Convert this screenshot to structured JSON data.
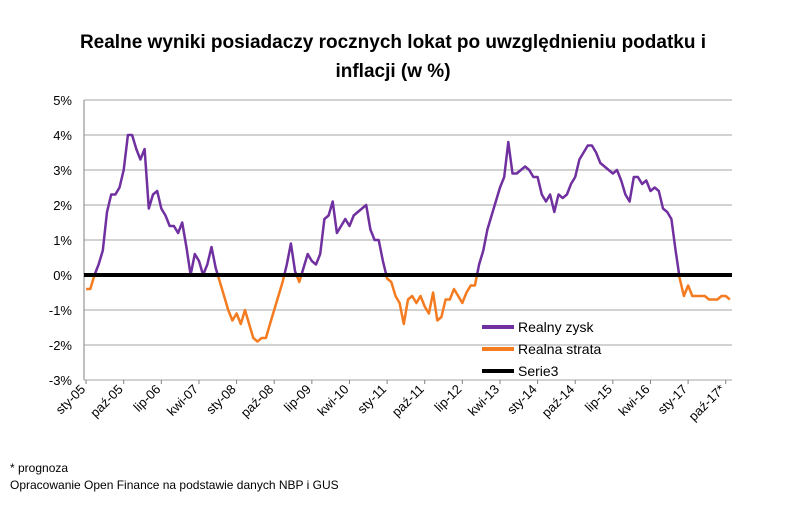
{
  "title": {
    "line1": "Realne wyniki posiadaczy rocznych lokat po uwzględnieniu podatku i",
    "line2": "inflacji (w %)"
  },
  "footnotes": {
    "note": "* prognoza",
    "source": "Opracowanie Open Finance na podstawie danych NBP i GUS"
  },
  "colors": {
    "gain": "#7030a0",
    "loss": "#f47b20",
    "serie3": "#000000",
    "grid": "#a6a6a6"
  },
  "chart_data": {
    "type": "line",
    "title": "Realne wyniki posiadaczy rocznych lokat po uwzględnieniu podatku i inflacji (w %)",
    "xlabel": "",
    "ylabel": "",
    "ylim": [
      -3,
      5
    ],
    "y_ticks": [
      "-3%",
      "-2%",
      "-1%",
      "0%",
      "1%",
      "2%",
      "3%",
      "4%",
      "5%"
    ],
    "x_tick_labels": [
      "sty-05",
      "paź-05",
      "lip-06",
      "kwi-07",
      "sty-08",
      "paź-08",
      "lip-09",
      "kwi-10",
      "sty-11",
      "paź-11",
      "lip-12",
      "kwi-13",
      "sty-14",
      "paź-14",
      "lip-15",
      "kwi-16",
      "sty-17",
      "paź-17*"
    ],
    "grid": true,
    "legend_position": "bottom-right",
    "series_names": [
      "Realny zysk",
      "Realna strata",
      "Serie3"
    ],
    "x_start": "sty-05",
    "x_end": "gru-17",
    "values": [
      -0.4,
      -0.4,
      0.0,
      0.3,
      0.7,
      1.8,
      2.3,
      2.3,
      2.5,
      3.0,
      4.0,
      4.0,
      3.6,
      3.3,
      3.6,
      1.9,
      2.3,
      2.4,
      1.9,
      1.7,
      1.4,
      1.4,
      1.2,
      1.5,
      0.8,
      0.0,
      0.6,
      0.4,
      0.0,
      0.3,
      0.8,
      0.2,
      -0.2,
      -0.6,
      -1.0,
      -1.3,
      -1.1,
      -1.4,
      -1.0,
      -1.4,
      -1.8,
      -1.9,
      -1.8,
      -1.8,
      -1.4,
      -1.0,
      -0.6,
      -0.2,
      0.3,
      0.9,
      0.1,
      -0.2,
      0.2,
      0.6,
      0.4,
      0.3,
      0.6,
      1.6,
      1.7,
      2.1,
      1.2,
      1.4,
      1.6,
      1.4,
      1.7,
      1.8,
      1.9,
      2.0,
      1.3,
      1.0,
      1.0,
      0.4,
      -0.1,
      -0.2,
      -0.6,
      -0.8,
      -1.4,
      -0.7,
      -0.6,
      -0.8,
      -0.6,
      -0.9,
      -1.1,
      -0.5,
      -1.3,
      -1.2,
      -0.7,
      -0.7,
      -0.4,
      -0.6,
      -0.8,
      -0.5,
      -0.3,
      -0.3,
      0.3,
      0.7,
      1.3,
      1.7,
      2.1,
      2.5,
      2.8,
      3.8,
      2.9,
      2.9,
      3.0,
      3.1,
      3.0,
      2.8,
      2.8,
      2.3,
      2.1,
      2.3,
      1.8,
      2.3,
      2.2,
      2.3,
      2.6,
      2.8,
      3.3,
      3.5,
      3.7,
      3.7,
      3.5,
      3.2,
      3.1,
      3.0,
      2.9,
      3.0,
      2.7,
      2.3,
      2.1,
      2.8,
      2.8,
      2.6,
      2.7,
      2.4,
      2.5,
      2.4,
      1.9,
      1.8,
      1.6,
      0.7,
      -0.1,
      -0.6,
      -0.3,
      -0.6,
      -0.6,
      -0.6,
      -0.6,
      -0.7,
      -0.7,
      -0.7,
      -0.6,
      -0.6,
      -0.7
    ]
  }
}
